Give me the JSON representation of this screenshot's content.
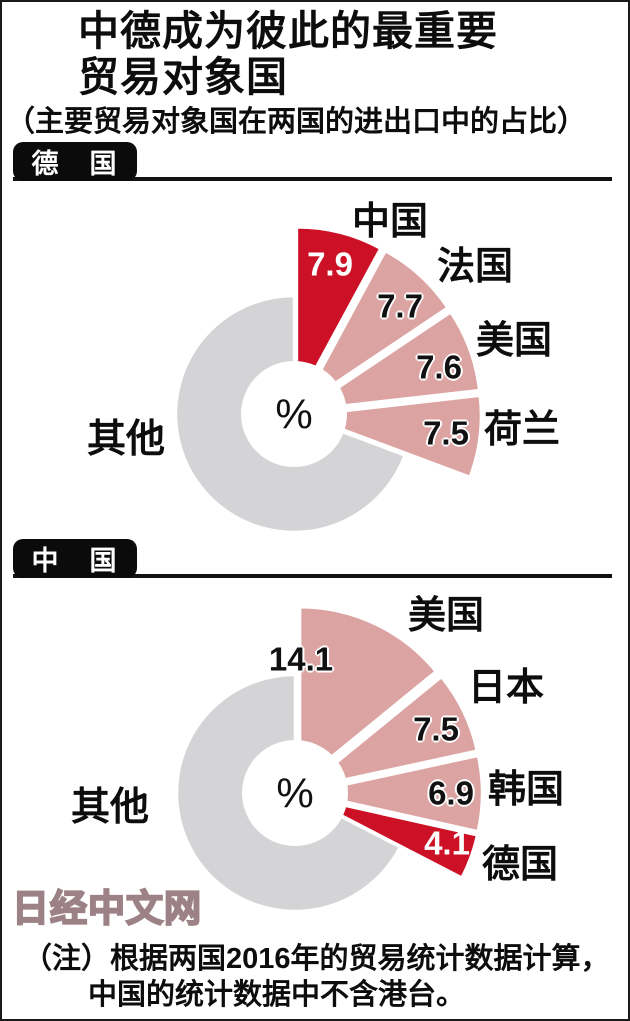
{
  "title": {
    "line1": "中德成为彼此的最重要",
    "line2": "贸易对象国"
  },
  "subtitle": "（主要贸易对象国在两国的进出口中的占比）",
  "watermark": "日经中文网",
  "note": {
    "line1": "（注）根据两国2016年的贸易统计数据计算，",
    "line2": "中国的统计数据中不含港台。"
  },
  "colors": {
    "highlight_red": "#cc1126",
    "partner_pink": "#dba3a2",
    "others_gray": "#d4d4d6",
    "hole_white": "#ffffff"
  },
  "chart_data": [
    {
      "type": "pie",
      "subtype": "exploded-donut",
      "region": "德　国",
      "center_label": "%",
      "unit": "percent of imports+exports",
      "direction": "clockwise",
      "start_angle_deg": 0,
      "slices": [
        {
          "label": "中国",
          "value": 7.9,
          "highlight": true
        },
        {
          "label": "法国",
          "value": 7.7,
          "highlight": false
        },
        {
          "label": "美国",
          "value": 7.6,
          "highlight": false
        },
        {
          "label": "荷兰",
          "value": 7.5,
          "highlight": false
        }
      ],
      "others": {
        "label": "其他"
      }
    },
    {
      "type": "pie",
      "subtype": "exploded-donut",
      "region": "中　国",
      "center_label": "%",
      "unit": "percent of imports+exports",
      "direction": "clockwise",
      "start_angle_deg": 0,
      "slices": [
        {
          "label": "美国",
          "value": 14.1,
          "highlight": false
        },
        {
          "label": "日本",
          "value": 7.5,
          "highlight": false
        },
        {
          "label": "韩国",
          "value": 6.9,
          "highlight": false
        },
        {
          "label": "德国",
          "value": 4.1,
          "highlight": true
        }
      ],
      "others": {
        "label": "其他"
      }
    }
  ]
}
